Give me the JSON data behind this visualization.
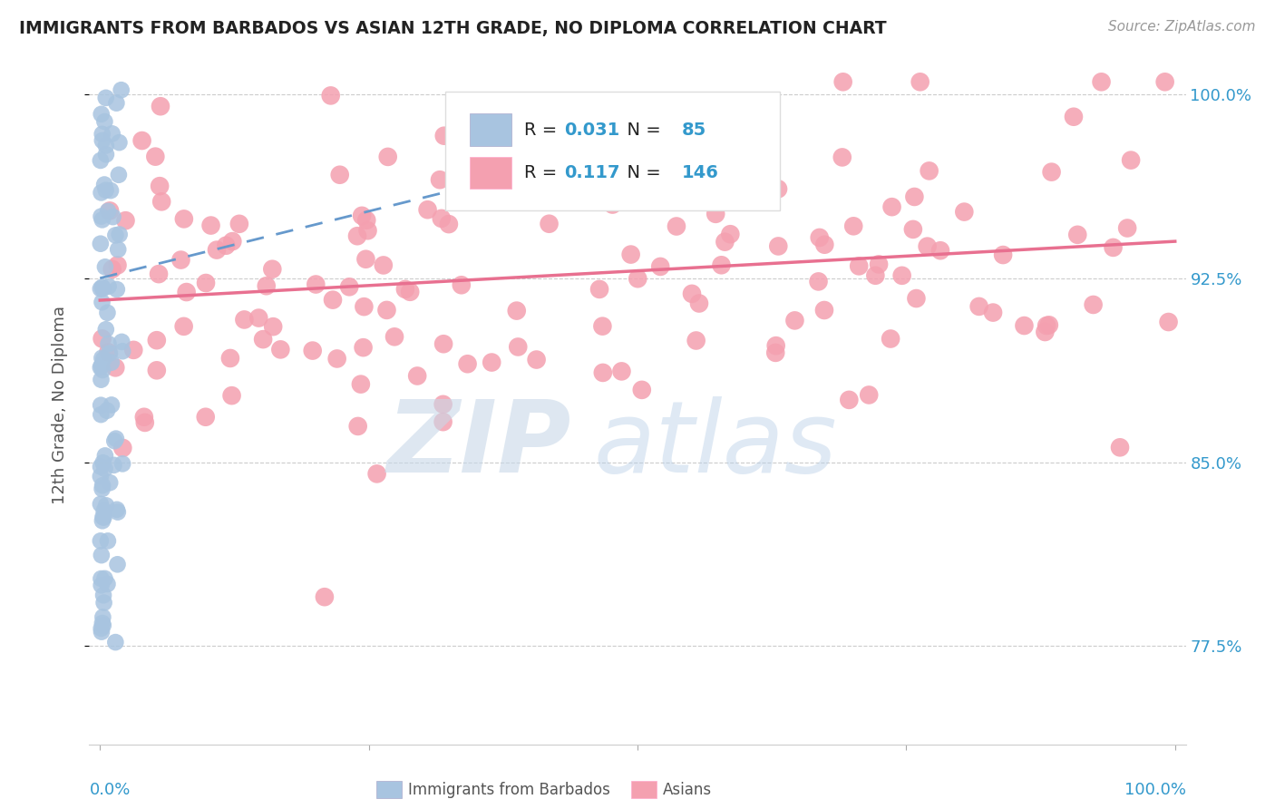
{
  "title": "IMMIGRANTS FROM BARBADOS VS ASIAN 12TH GRADE, NO DIPLOMA CORRELATION CHART",
  "source": "Source: ZipAtlas.com",
  "ylabel": "12th Grade, No Diploma",
  "legend_barbados_R": "0.031",
  "legend_barbados_N": "85",
  "legend_asian_R": "0.117",
  "legend_asian_N": "146",
  "barbados_color": "#a8c4e0",
  "asian_color": "#f4a0b0",
  "barbados_trend_color": "#6699cc",
  "asian_trend_color": "#e87090",
  "watermark_color": "#c8d8e8",
  "background_color": "#ffffff",
  "ytick_vals": [
    0.775,
    0.85,
    0.925,
    1.0
  ],
  "ytick_labels": [
    "77.5%",
    "85.0%",
    "92.5%",
    "100.0%"
  ],
  "xlim": [
    -0.01,
    1.01
  ],
  "ylim": [
    0.735,
    1.012
  ]
}
